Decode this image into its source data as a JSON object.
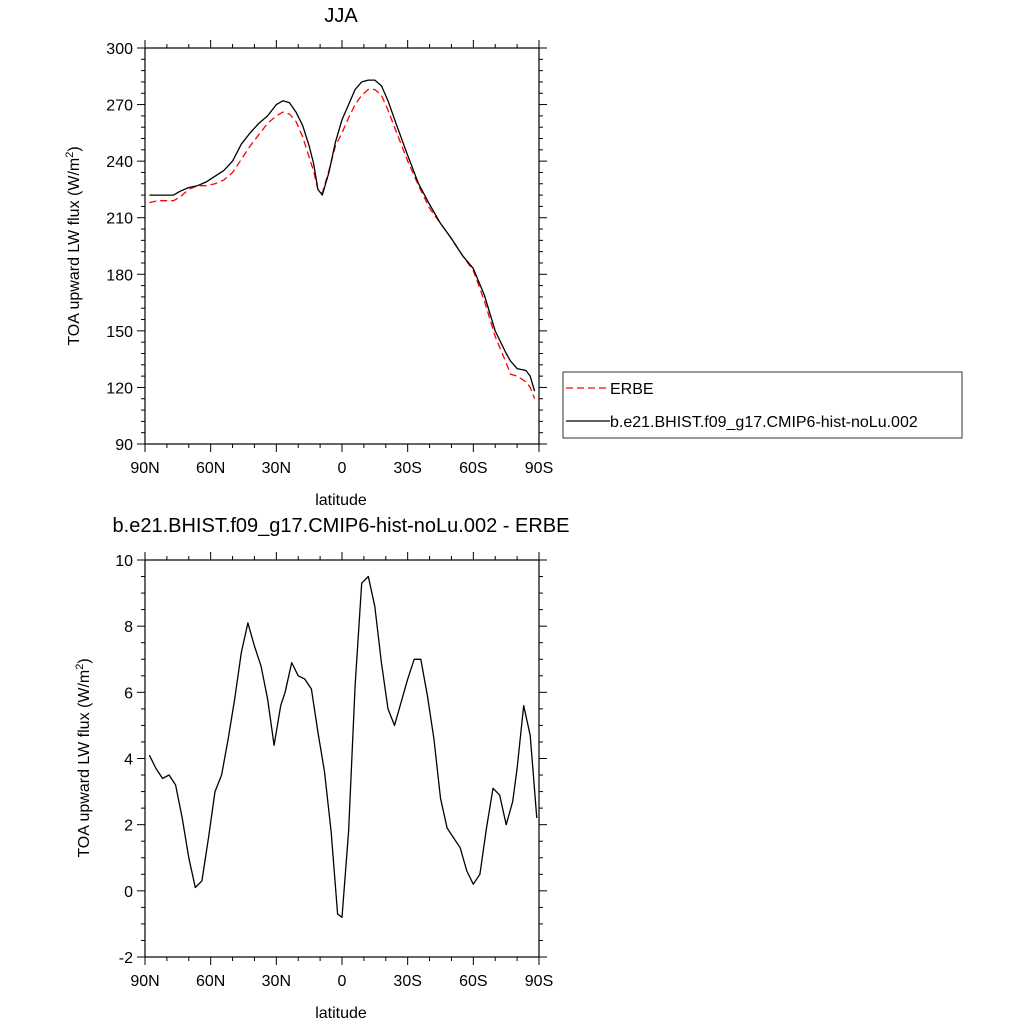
{
  "chart_data": [
    {
      "type": "line",
      "title": "JJA",
      "xlabel": "latitude",
      "ylabel": "TOA upward LW flux (W/m",
      "ylabel_sup": "2",
      "ylabel_close": ")",
      "xlim": [
        90,
        -90
      ],
      "ylim": [
        90,
        300
      ],
      "xticks": [
        {
          "value": 90,
          "label": "90N"
        },
        {
          "value": 60,
          "label": "60N"
        },
        {
          "value": 30,
          "label": "30N"
        },
        {
          "value": 0,
          "label": "0"
        },
        {
          "value": -30,
          "label": "30S"
        },
        {
          "value": -60,
          "label": "60S"
        },
        {
          "value": -90,
          "label": "90S"
        }
      ],
      "yticks": [
        {
          "value": 90,
          "label": "90"
        },
        {
          "value": 120,
          "label": "120"
        },
        {
          "value": 150,
          "label": "150"
        },
        {
          "value": 180,
          "label": "180"
        },
        {
          "value": 210,
          "label": "210"
        },
        {
          "value": 240,
          "label": "240"
        },
        {
          "value": 270,
          "label": "270"
        },
        {
          "value": 300,
          "label": "300"
        }
      ],
      "legend": "right",
      "series": [
        {
          "name": "ERBE",
          "color": "#ff0000",
          "dash": true,
          "x": [
            88,
            84,
            80,
            77,
            74,
            70,
            66,
            62,
            58,
            54,
            50,
            46,
            42,
            38,
            34,
            30,
            27,
            24,
            21,
            18,
            15,
            13,
            11,
            9,
            6,
            3,
            0,
            -3,
            -6,
            -9,
            -12,
            -15,
            -18,
            -21,
            -25,
            -30,
            -35,
            -40,
            -45,
            -50,
            -55,
            -60,
            -65,
            -70,
            -75,
            -77,
            -80,
            -84,
            -86,
            -88
          ],
          "y": [
            218,
            219,
            219,
            219,
            221,
            225,
            227,
            227,
            228,
            230,
            234,
            241,
            248,
            254,
            260,
            264,
            266,
            265,
            261,
            253,
            242,
            235,
            225,
            223,
            235,
            248,
            255,
            263,
            270,
            275,
            278,
            278,
            275,
            267,
            255,
            240,
            227,
            215,
            207,
            199,
            190,
            182,
            166,
            147,
            133,
            127,
            126,
            123,
            120,
            114
          ]
        },
        {
          "name": "b.e21.BHIST.f09_g17.CMIP6-hist-noLu.002",
          "color": "#000000",
          "dash": false,
          "x": [
            88,
            84,
            80,
            77,
            74,
            70,
            66,
            62,
            58,
            54,
            50,
            46,
            42,
            38,
            34,
            30,
            27,
            24,
            21,
            18,
            15,
            13,
            11,
            9,
            6,
            3,
            0,
            -3,
            -6,
            -9,
            -12,
            -15,
            -18,
            -21,
            -25,
            -30,
            -35,
            -40,
            -45,
            -50,
            -55,
            -60,
            -65,
            -70,
            -75,
            -77,
            -80,
            -84,
            -86,
            -88
          ],
          "y": [
            222,
            222,
            222,
            222,
            224,
            226,
            227,
            229,
            232,
            235,
            240,
            249,
            255,
            260,
            264,
            270,
            272,
            271,
            266,
            259,
            248,
            239,
            225,
            222,
            234,
            250,
            262,
            270,
            278,
            282,
            283,
            283,
            280,
            272,
            259,
            243,
            228,
            217,
            207,
            199,
            190,
            183,
            169,
            150,
            138,
            134,
            130,
            129,
            126,
            118
          ]
        }
      ]
    },
    {
      "type": "line",
      "title": "b.e21.BHIST.f09_g17.CMIP6-hist-noLu.002 - ERBE",
      "xlabel": "latitude",
      "ylabel": "TOA upward LW flux (W/m",
      "ylabel_sup": "2",
      "ylabel_close": ")",
      "xlim": [
        90,
        -90
      ],
      "ylim": [
        -2,
        10
      ],
      "xticks": [
        {
          "value": 90,
          "label": "90N"
        },
        {
          "value": 60,
          "label": "60N"
        },
        {
          "value": 30,
          "label": "30N"
        },
        {
          "value": 0,
          "label": "0"
        },
        {
          "value": -30,
          "label": "30S"
        },
        {
          "value": -60,
          "label": "60S"
        },
        {
          "value": -90,
          "label": "90S"
        }
      ],
      "yticks": [
        {
          "value": -2,
          "label": "-2"
        },
        {
          "value": 0,
          "label": "0"
        },
        {
          "value": 2,
          "label": "2"
        },
        {
          "value": 4,
          "label": "4"
        },
        {
          "value": 6,
          "label": "6"
        },
        {
          "value": 8,
          "label": "8"
        },
        {
          "value": 10,
          "label": "10"
        }
      ],
      "series": [
        {
          "color": "#000000",
          "dash": false,
          "x": [
            88,
            85,
            82,
            79,
            76,
            73,
            70,
            67,
            64,
            61,
            58,
            55,
            52,
            49,
            46,
            43,
            40,
            37,
            34,
            31,
            28,
            26,
            23,
            20,
            17,
            14,
            11,
            8,
            5,
            2,
            0,
            -3,
            -6,
            -9,
            -12,
            -15,
            -18,
            -21,
            -24,
            -27,
            -30,
            -33,
            -36,
            -39,
            -42,
            -45,
            -48,
            -51,
            -54,
            -57,
            -60,
            -63,
            -66,
            -69,
            -72,
            -75,
            -78,
            -80,
            -83,
            -86,
            -89
          ],
          "y": [
            4.1,
            3.7,
            3.4,
            3.5,
            3.2,
            2.2,
            1.0,
            0.1,
            0.3,
            1.6,
            3.0,
            3.5,
            4.6,
            5.8,
            7.2,
            8.1,
            7.4,
            6.8,
            5.8,
            4.4,
            5.6,
            6.0,
            6.9,
            6.5,
            6.4,
            6.1,
            4.8,
            3.6,
            1.8,
            -0.7,
            -0.8,
            1.8,
            6.2,
            9.3,
            9.5,
            8.6,
            6.9,
            5.5,
            5.0,
            5.7,
            6.4,
            7.0,
            7.0,
            5.9,
            4.6,
            2.8,
            1.9,
            1.6,
            1.3,
            0.6,
            0.2,
            0.5,
            1.9,
            3.1,
            2.9,
            2.0,
            2.7,
            3.7,
            5.6,
            4.7,
            2.2
          ]
        }
      ]
    }
  ]
}
